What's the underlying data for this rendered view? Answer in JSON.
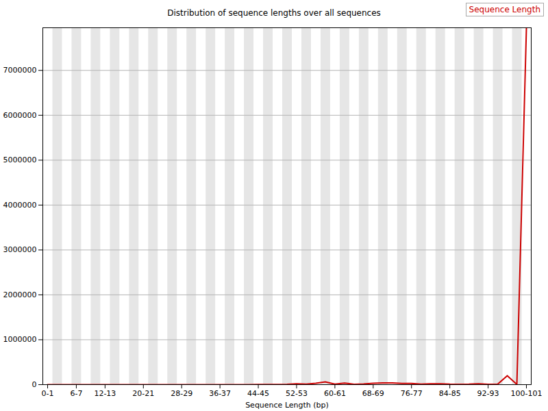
{
  "chart_data": {
    "type": "line",
    "title": "Distribution of sequence lengths over all sequences",
    "x_label": "Sequence Length (bp)",
    "categories": [
      "0-1",
      null,
      null,
      "6-7",
      null,
      null,
      "12-13",
      null,
      null,
      null,
      "20-21",
      null,
      null,
      null,
      "28-29",
      null,
      null,
      null,
      "36-37",
      null,
      null,
      null,
      "44-45",
      null,
      null,
      null,
      "52-53",
      null,
      null,
      null,
      "60-61",
      null,
      null,
      null,
      "68-69",
      null,
      null,
      null,
      "76-77",
      null,
      null,
      null,
      "84-85",
      null,
      null,
      null,
      "92-93",
      null,
      null,
      null,
      "100-101"
    ],
    "series": [
      {
        "name": "Sequence Length",
        "color": "#cc0000",
        "values": [
          0,
          0,
          0,
          0,
          0,
          0,
          0,
          0,
          0,
          0,
          0,
          0,
          0,
          0,
          0,
          0,
          0,
          0,
          0,
          0,
          500,
          1000,
          2000,
          3000,
          5000,
          8000,
          20000,
          10000,
          30000,
          60000,
          10000,
          35000,
          8000,
          15000,
          30000,
          40000,
          40000,
          25000,
          25000,
          10000,
          20000,
          20000,
          10000,
          8000,
          10000,
          20000,
          8000,
          10000,
          200000,
          5000,
          7950000
        ]
      }
    ],
    "ylim": [
      0,
      7950000
    ],
    "yticks": [
      0,
      1000000,
      2000000,
      3000000,
      4000000,
      5000000,
      6000000,
      7000000
    ],
    "grid": true,
    "legend": "top-right"
  }
}
